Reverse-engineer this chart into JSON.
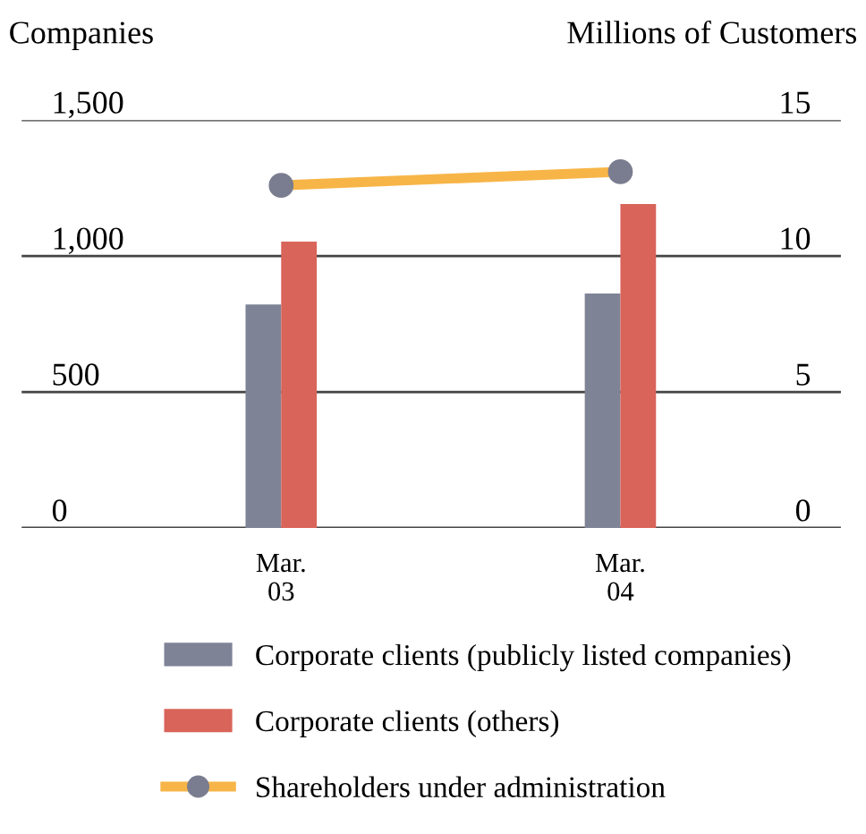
{
  "chart_data": {
    "type": "bar",
    "categories": [
      "Mar.\n03",
      "Mar.\n04"
    ],
    "ylabel": "Companies",
    "y2label": "Millions of Customers",
    "ylim": [
      0,
      1500
    ],
    "yticks": [
      0,
      {
        "value": 500,
        "label": "500"
      },
      {
        "value": 1000,
        "label": "1,000"
      },
      {
        "value": 1500,
        "label": "1,500"
      }
    ],
    "y2lim": [
      0,
      15
    ],
    "y2ticks": [
      0,
      5,
      10,
      15
    ],
    "grid": "y",
    "legend": "bottom",
    "series": [
      {
        "name": "Corporate clients (publicly listed companies)",
        "color": "#7f8396",
        "values": [
          822,
          862
        ]
      },
      {
        "name": "Corporate clients (others)",
        "color": "#d9645a",
        "values": [
          1053,
          1191
        ]
      },
      {
        "name": "Shareholders under administration",
        "type": "line",
        "axis": "y2",
        "color": "#f7b548",
        "marker": "circle",
        "values": [
          12.6,
          13.1
        ]
      }
    ]
  }
}
